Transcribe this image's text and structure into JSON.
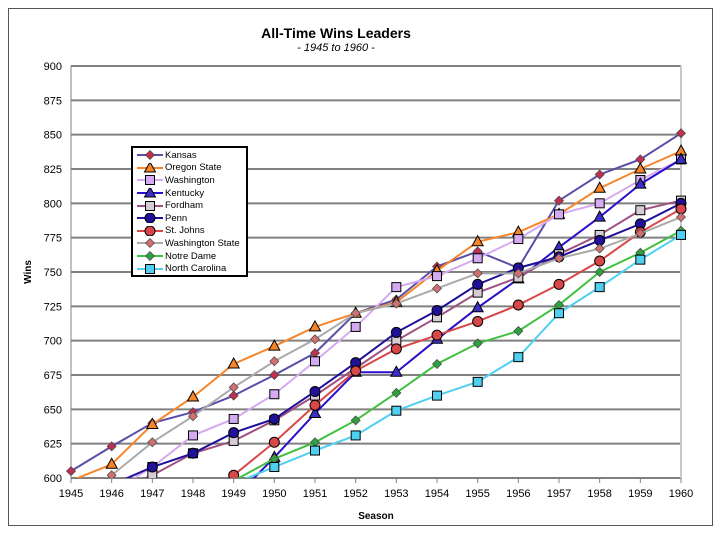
{
  "chart_data": {
    "type": "line",
    "title": "All-Time Wins Leaders",
    "subtitle": "- 1945 to 1960 -",
    "xlabel": "Season",
    "ylabel": "Wins",
    "x": [
      1945,
      1946,
      1947,
      1948,
      1949,
      1950,
      1951,
      1952,
      1953,
      1954,
      1955,
      1956,
      1957,
      1958,
      1959,
      1960
    ],
    "ylim": [
      600,
      900
    ],
    "yticks": [
      600,
      625,
      650,
      675,
      700,
      725,
      750,
      775,
      800,
      825,
      850,
      875,
      900
    ],
    "grid": true,
    "legend_position": "upper-left inside",
    "series": [
      {
        "name": "Kansas",
        "color": "#5a4ea6",
        "marker": "diamond",
        "fill": "#c03050",
        "values": [
          605,
          623,
          640,
          648,
          660,
          675,
          691,
          720,
          730,
          754,
          765,
          753,
          802,
          821,
          832,
          851
        ]
      },
      {
        "name": "Oregon State",
        "color": "#f7862a",
        "marker": "triangle",
        "fill": "#f7862a",
        "values": [
          598,
          610,
          639,
          659,
          683,
          696,
          710,
          720,
          728,
          751,
          772,
          779,
          792,
          811,
          825,
          838
        ]
      },
      {
        "name": "Washington",
        "color": "#d4aaf0",
        "marker": "square",
        "fill": "#d4aaf0",
        "values": [
          null,
          590,
          608,
          631,
          643,
          661,
          685,
          710,
          739,
          747,
          760,
          774,
          792,
          800,
          817,
          832
        ]
      },
      {
        "name": "Kentucky",
        "color": "#2a10c8",
        "marker": "triangle",
        "fill": "#3a30c8",
        "values": [
          null,
          null,
          null,
          null,
          585,
          615,
          647,
          677,
          677,
          701,
          724,
          745,
          768,
          790,
          814,
          832
        ]
      },
      {
        "name": "Fordham",
        "color": "#a05080",
        "marker": "square",
        "fill": "#d8ccd4",
        "values": [
          null,
          590,
          602,
          618,
          627,
          642,
          660,
          680,
          700,
          717,
          735,
          746,
          763,
          777,
          795,
          802
        ]
      },
      {
        "name": "Penn",
        "color": "#20109a",
        "marker": "circle",
        "fill": "#20109a",
        "values": [
          null,
          595,
          608,
          618,
          633,
          643,
          663,
          684,
          706,
          722,
          741,
          753,
          761,
          773,
          785,
          800
        ]
      },
      {
        "name": "St. Johns",
        "color": "#d84848",
        "marker": "circle",
        "fill": "#d84848",
        "values": [
          null,
          null,
          null,
          585,
          602,
          626,
          653,
          678,
          694,
          704,
          714,
          726,
          741,
          758,
          779,
          796
        ]
      },
      {
        "name": "Washington State",
        "color": "#aaaaaa",
        "marker": "diamond",
        "fill": "#d07070",
        "values": [
          null,
          602,
          626,
          645,
          666,
          685,
          701,
          720,
          727,
          738,
          749,
          749,
          760,
          767,
          778,
          790
        ]
      },
      {
        "name": "Notre Dame",
        "color": "#40c040",
        "marker": "diamond",
        "fill": "#30a040",
        "values": [
          null,
          null,
          null,
          null,
          598,
          614,
          626,
          642,
          662,
          683,
          698,
          707,
          726,
          750,
          764,
          780
        ]
      },
      {
        "name": "North Carolina",
        "color": "#50d0f0",
        "marker": "square",
        "fill": "#50d0f0",
        "values": [
          null,
          null,
          null,
          null,
          596,
          608,
          620,
          631,
          649,
          660,
          670,
          688,
          720,
          739,
          759,
          777
        ]
      }
    ]
  }
}
